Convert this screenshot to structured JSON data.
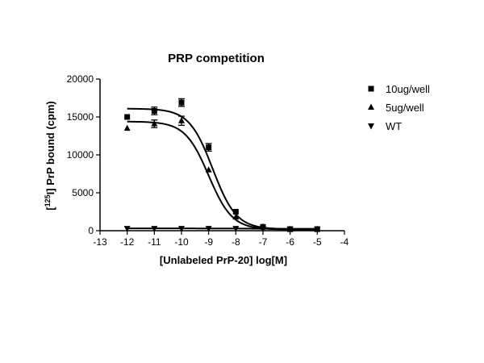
{
  "chart_data": {
    "type": "scatter",
    "title": "PRP competition",
    "xlabel": "[Unlabeled PrP-20] log[M]",
    "ylabel_prefix": "[",
    "ylabel_superscript": "125",
    "ylabel_suffix": "I] PrP bound  (cpm)",
    "xlim": [
      -13,
      -4
    ],
    "ylim": [
      0,
      20000
    ],
    "x_ticks": [
      -13,
      -12,
      -11,
      -10,
      -9,
      -8,
      -7,
      -6,
      -5,
      -4
    ],
    "y_ticks": [
      0,
      5000,
      10000,
      15000,
      20000
    ],
    "grid": false,
    "legend_position": "top-right",
    "series": [
      {
        "name": "10ug/well",
        "marker": "square",
        "points": [
          {
            "x": -12,
            "y": 15000
          },
          {
            "x": -11,
            "y": 15800,
            "err": 500
          },
          {
            "x": -10,
            "y": 16900,
            "err": 500
          },
          {
            "x": -9,
            "y": 11000,
            "err": 500
          },
          {
            "x": -8,
            "y": 2500
          },
          {
            "x": -7,
            "y": 500
          },
          {
            "x": -6,
            "y": 200
          },
          {
            "x": -5,
            "y": 200
          }
        ],
        "fit": {
          "top": 16100,
          "bottom": 200,
          "logEC50": -8.85,
          "hill": 1
        }
      },
      {
        "name": "5ug/well",
        "marker": "triangle-up",
        "points": [
          {
            "x": -12,
            "y": 13500
          },
          {
            "x": -11,
            "y": 14100,
            "err": 500
          },
          {
            "x": -10,
            "y": 14500,
            "err": 600
          },
          {
            "x": -9,
            "y": 8000
          },
          {
            "x": -8,
            "y": 1800
          },
          {
            "x": -7,
            "y": 500
          },
          {
            "x": -6,
            "y": 200
          },
          {
            "x": -5,
            "y": 200
          }
        ],
        "fit": {
          "top": 14400,
          "bottom": 150,
          "logEC50": -9.0,
          "hill": 1
        }
      },
      {
        "name": "WT",
        "marker": "triangle-down",
        "points": [
          {
            "x": -12,
            "y": 300
          },
          {
            "x": -11,
            "y": 300
          },
          {
            "x": -10,
            "y": 300
          },
          {
            "x": -9,
            "y": 300
          },
          {
            "x": -8,
            "y": 300
          },
          {
            "x": -7,
            "y": 300
          },
          {
            "x": -6,
            "y": 250
          },
          {
            "x": -5,
            "y": 250
          }
        ],
        "fit": {
          "top": 300,
          "bottom": 250,
          "logEC50": -7.5,
          "hill": 1
        }
      }
    ]
  }
}
